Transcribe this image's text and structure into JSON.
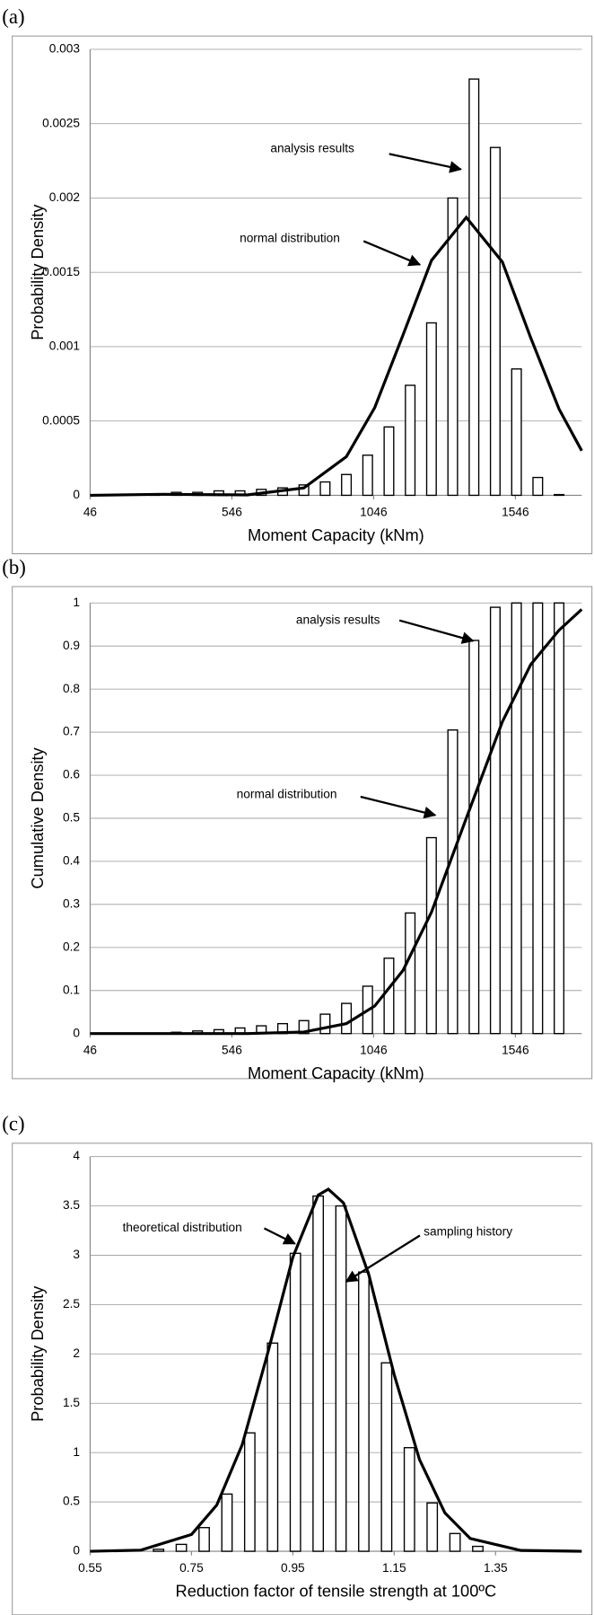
{
  "chart_data": [
    {
      "type": "histogram",
      "label": "(a)",
      "x_label": "Moment Capacity (kNm)",
      "y_label": "Probability Density",
      "x": [
        275,
        350,
        425,
        500,
        575,
        650,
        725,
        800,
        875,
        950,
        1025,
        1100,
        1175,
        1250,
        1325,
        1400,
        1475,
        1550,
        1625,
        1700
      ],
      "values": [
        1e-05,
        2e-05,
        2e-05,
        3e-05,
        3e-05,
        4e-05,
        5e-05,
        7e-05,
        9e-05,
        0.00014,
        0.00027,
        0.00046,
        0.00074,
        0.00116,
        0.002,
        0.0028,
        0.00234,
        0.00085,
        0.00012,
        5e-06
      ],
      "curve": {
        "x": [
          46,
          300,
          600,
          800,
          950,
          1050,
          1150,
          1250,
          1373,
          1500,
          1600,
          1700,
          1780
        ],
        "values": [
          0,
          7e-06,
          2.6e-06,
          5e-05,
          0.00026,
          0.00059,
          0.00108,
          0.00158,
          0.00187,
          0.00157,
          0.00106,
          0.00058,
          0.0003
        ]
      },
      "annotations": [
        "analysis results",
        "normal distribution"
      ],
      "xlim": [
        46,
        1780
      ],
      "xticks": [
        46,
        546,
        1046,
        1546
      ],
      "ylim": [
        0,
        0.003
      ],
      "yticks": [
        0,
        0.0005,
        0.001,
        0.0015,
        0.002,
        0.0025,
        0.003
      ],
      "grid": true
    },
    {
      "type": "histogram",
      "label": "(b)",
      "x_label": "Moment Capacity (kNm)",
      "y_label": "Cumulative Density",
      "x": [
        275,
        350,
        425,
        500,
        575,
        650,
        725,
        800,
        875,
        950,
        1025,
        1100,
        1175,
        1250,
        1325,
        1400,
        1475,
        1550,
        1625,
        1700
      ],
      "values": [
        0.001,
        0.003,
        0.006,
        0.009,
        0.013,
        0.018,
        0.023,
        0.03,
        0.045,
        0.07,
        0.11,
        0.175,
        0.28,
        0.455,
        0.705,
        0.913,
        0.99,
        1,
        1,
        1
      ],
      "curve": {
        "x": [
          46,
          300,
          600,
          800,
          950,
          1050,
          1150,
          1250,
          1373,
          1500,
          1600,
          1700,
          1780
        ],
        "values": [
          0,
          0,
          0.0001,
          0.0035,
          0.023,
          0.064,
          0.147,
          0.282,
          0.5,
          0.724,
          0.857,
          0.937,
          0.985
        ]
      },
      "annotations": [
        "analysis results",
        "normal distribution"
      ],
      "xlim": [
        46,
        1780
      ],
      "xticks": [
        46,
        546,
        1046,
        1546
      ],
      "ylim": [
        0,
        1
      ],
      "yticks": [
        0,
        0.1,
        0.2,
        0.3,
        0.4,
        0.5,
        0.6,
        0.7,
        0.8,
        0.9,
        1
      ],
      "grid": true
    },
    {
      "type": "histogram",
      "label": "(c)",
      "x_label": "Reduction factor of tensile strength at 100ºC",
      "y_label": "Probability Density",
      "x": [
        0.685,
        0.73,
        0.775,
        0.82,
        0.865,
        0.91,
        0.955,
        1.0,
        1.045,
        1.09,
        1.135,
        1.18,
        1.225,
        1.27,
        1.315
      ],
      "values": [
        0.02,
        0.07,
        0.24,
        0.58,
        1.2,
        2.11,
        3.02,
        3.6,
        3.5,
        2.83,
        1.91,
        1.05,
        0.49,
        0.18,
        0.05
      ],
      "curve": {
        "x": [
          0.55,
          0.65,
          0.75,
          0.8,
          0.85,
          0.9,
          0.95,
          1.0,
          1.02,
          1.05,
          1.1,
          1.15,
          1.2,
          1.25,
          1.3,
          1.4,
          1.52
        ],
        "values": [
          0,
          0.011,
          0.17,
          0.47,
          1.08,
          2.0,
          2.98,
          3.61,
          3.67,
          3.53,
          2.8,
          1.79,
          0.93,
          0.39,
          0.13,
          0.008,
          0
        ]
      },
      "annotations": [
        "theoretical distribution",
        "sampling history"
      ],
      "xlim": [
        0.55,
        1.52
      ],
      "xticks": [
        0.55,
        0.75,
        0.95,
        1.15,
        1.35
      ],
      "ylim": [
        0,
        4
      ],
      "yticks": [
        0,
        0.5,
        1,
        1.5,
        2,
        2.5,
        3,
        3.5,
        4
      ],
      "grid": true
    }
  ]
}
